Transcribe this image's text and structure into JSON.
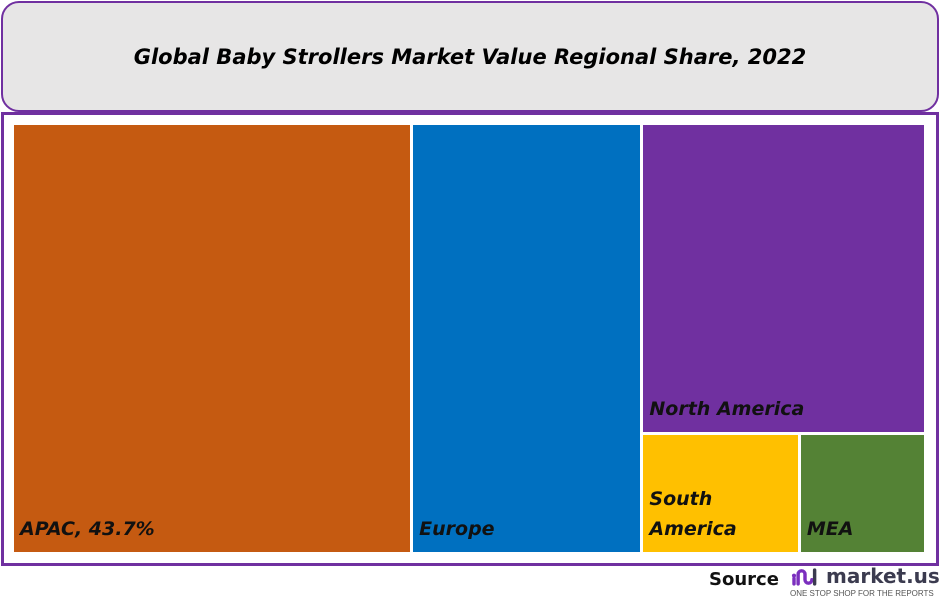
{
  "chart_data": {
    "type": "treemap",
    "title": "Global Baby Strollers Market Value Regional Share, 2022",
    "categories": [
      "APAC",
      "Europe",
      "North America",
      "South America",
      "MEA"
    ],
    "values": [
      43.7,
      25.3,
      22.4,
      4.8,
      3.8
    ],
    "labels": [
      "APAC, 43.7%",
      "Europe",
      "North America",
      "South America",
      "MEA"
    ],
    "colors": [
      "#c55a11",
      "#0070c0",
      "#7030a0",
      "#ffc000",
      "#548235"
    ],
    "unit": "%"
  },
  "footer": {
    "source_label": "Source",
    "logo_text": "market.us",
    "logo_tagline": "ONE STOP SHOP FOR THE REPORTS"
  }
}
